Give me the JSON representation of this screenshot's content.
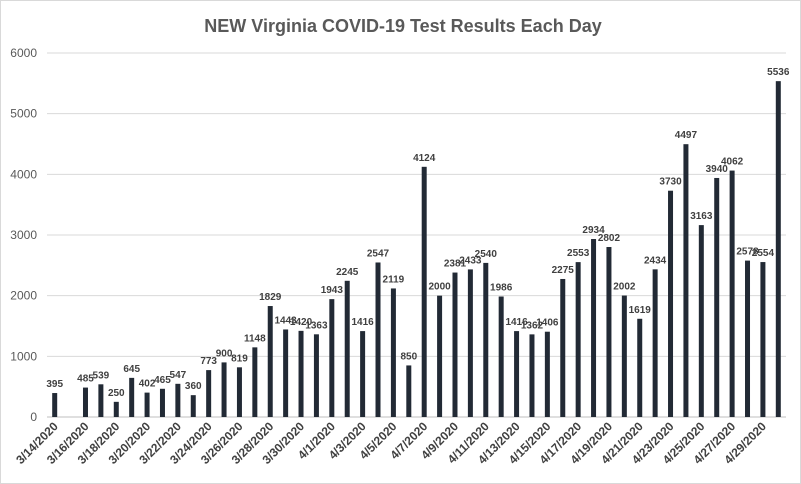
{
  "chart_data": {
    "type": "bar",
    "title": "NEW Virginia COVID-19 Test Results Each Day",
    "xlabel": "",
    "ylabel": "",
    "ylim": [
      0,
      6000
    ],
    "yticks": [
      0,
      1000,
      2000,
      3000,
      4000,
      5000,
      6000
    ],
    "grid": true,
    "legend": "none",
    "bar_color": "#222a35",
    "categories": [
      "3/14/2020",
      "3/15/2020",
      "3/16/2020",
      "3/17/2020",
      "3/18/2020",
      "3/19/2020",
      "3/20/2020",
      "3/21/2020",
      "3/22/2020",
      "3/23/2020",
      "3/24/2020",
      "3/25/2020",
      "3/26/2020",
      "3/27/2020",
      "3/28/2020",
      "3/29/2020",
      "3/30/2020",
      "3/31/2020",
      "4/1/2020",
      "4/2/2020",
      "4/3/2020",
      "4/4/2020",
      "4/5/2020",
      "4/6/2020",
      "4/7/2020",
      "4/8/2020",
      "4/9/2020",
      "4/10/2020",
      "4/11/2020",
      "4/12/2020",
      "4/13/2020",
      "4/14/2020",
      "4/15/2020",
      "4/16/2020",
      "4/17/2020",
      "4/18/2020",
      "4/19/2020",
      "4/20/2020",
      "4/21/2020",
      "4/22/2020",
      "4/23/2020",
      "4/24/2020",
      "4/25/2020",
      "4/26/2020",
      "4/27/2020",
      "4/28/2020",
      "4/29/2020",
      "4/30/2020"
    ],
    "tick_labels": [
      "3/14/2020",
      "3/16/2020",
      "3/18/2020",
      "3/20/2020",
      "3/22/2020",
      "3/24/2020",
      "3/26/2020",
      "3/28/2020",
      "3/30/2020",
      "4/1/2020",
      "4/3/2020",
      "4/5/2020",
      "4/7/2020",
      "4/9/2020",
      "4/11/2020",
      "4/13/2020",
      "4/15/2020",
      "4/17/2020",
      "4/19/2020",
      "4/21/2020",
      "4/23/2020",
      "4/25/2020",
      "4/27/2020",
      "4/29/2020"
    ],
    "values": [
      395,
      null,
      485,
      539,
      250,
      645,
      402,
      465,
      547,
      360,
      773,
      900,
      819,
      1148,
      1829,
      1443,
      1420,
      1363,
      1943,
      2245,
      1416,
      2547,
      2119,
      850,
      4124,
      2000,
      2381,
      2433,
      2540,
      1986,
      1416,
      1362,
      1406,
      2275,
      2553,
      2934,
      2802,
      2002,
      1619,
      2434,
      3730,
      4497,
      3163,
      3940,
      4062,
      2578,
      2554,
      5536
    ]
  }
}
